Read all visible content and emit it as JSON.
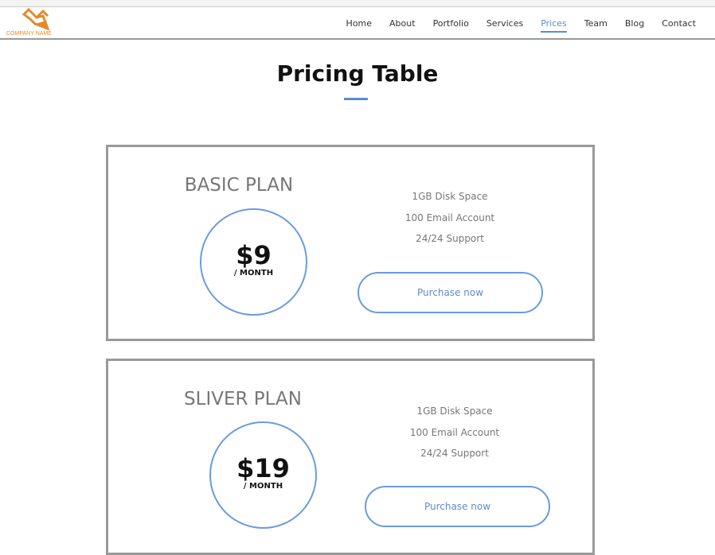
{
  "brand": {
    "name": "COMPANY NAME",
    "logo_color": "#e38a2c"
  },
  "nav": {
    "items": [
      {
        "label": "Home"
      },
      {
        "label": "About"
      },
      {
        "label": "Portfolio"
      },
      {
        "label": "Services"
      },
      {
        "label": "Prices",
        "active": true
      },
      {
        "label": "Team"
      },
      {
        "label": "Blog"
      },
      {
        "label": "Contact"
      }
    ]
  },
  "page": {
    "title": "Pricing Table"
  },
  "accent": "#5b8bd0",
  "plans": [
    {
      "name": "BASIC PLAN",
      "price": "$9",
      "period": "/ MONTH",
      "features": [
        "1GB Disk Space",
        "100 Email Account",
        "24/24 Support"
      ],
      "button": "Purchase now"
    },
    {
      "name": "SLIVER PLAN",
      "price": "$19",
      "period": "/ MONTH",
      "features": [
        "1GB Disk Space",
        "100 Email Account",
        "24/24 Support"
      ],
      "button": "Purchase now"
    }
  ]
}
